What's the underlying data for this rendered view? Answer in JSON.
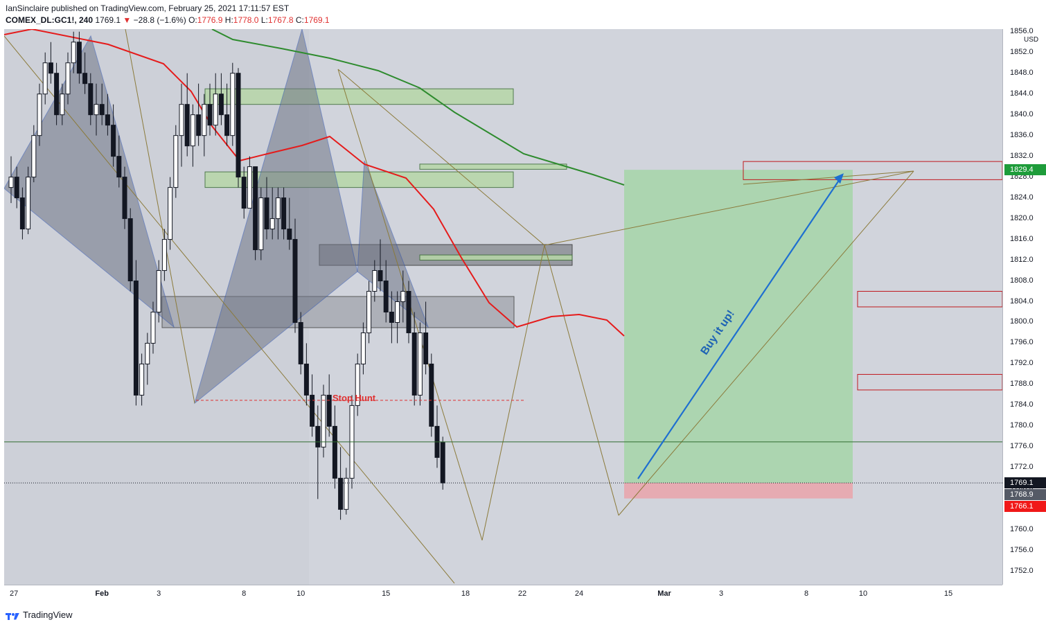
{
  "header": {
    "line1": "IanSinclaire published on TradingView.com, February 25, 2021 17:11:57 EST",
    "symbol": "COMEX_DL:GC1!, 240",
    "last": "1769.1",
    "change": "−28.8 (−1.6%)",
    "ohlc_open_label": "O:",
    "ohlc_open": "1776.9",
    "ohlc_high_label": "H:",
    "ohlc_high": "1778.0",
    "ohlc_low_label": "L:",
    "ohlc_low": "1767.8",
    "ohlc_close_label": "C:",
    "ohlc_close": "1769.1"
  },
  "axis": {
    "currency": "USD",
    "price_tags": [
      {
        "label": "1829.4",
        "color": "#1e9c3a"
      },
      {
        "label": "1769.1",
        "color": "#131722"
      },
      {
        "label": "1768.9",
        "color": "#555a66"
      },
      {
        "label": "1766.1",
        "color": "#f01818"
      }
    ]
  },
  "annotations": {
    "stop_hunt": "Stop Hunt",
    "buy_it_up": "Buy it up!"
  },
  "footer": {
    "brand": "TradingView"
  },
  "chart_data": {
    "type": "candlestick",
    "title": "COMEX_DL:GC1!, 240",
    "ylabel": "USD",
    "ylim": [
      1749.5,
      1856.5
    ],
    "yticks": [
      1752.0,
      1756.0,
      1760.0,
      1764.0,
      1768.0,
      1772.0,
      1776.0,
      1780.0,
      1784.0,
      1788.0,
      1792.0,
      1796.0,
      1800.0,
      1804.0,
      1808.0,
      1812.0,
      1816.0,
      1820.0,
      1824.0,
      1828.0,
      1832.0,
      1836.0,
      1840.0,
      1844.0,
      1848.0,
      1852.0,
      1856.0
    ],
    "xticks": [
      {
        "label": "27",
        "x": 0.5,
        "bold": false
      },
      {
        "label": "Feb",
        "x": 16,
        "bold": true
      },
      {
        "label": "3",
        "x": 26,
        "bold": false
      },
      {
        "label": "8",
        "x": 41,
        "bold": false
      },
      {
        "label": "10",
        "x": 51,
        "bold": false
      },
      {
        "label": "15",
        "x": 66,
        "bold": false
      },
      {
        "label": "18",
        "x": 80,
        "bold": false
      },
      {
        "label": "22",
        "x": 90,
        "bold": false
      },
      {
        "label": "24",
        "x": 100,
        "bold": false
      },
      {
        "label": "Mar",
        "x": 115,
        "bold": true
      },
      {
        "label": "3",
        "x": 125,
        "bold": false
      },
      {
        "label": "8",
        "x": 140,
        "bold": false
      },
      {
        "label": "10",
        "x": 150,
        "bold": false
      },
      {
        "label": "15",
        "x": 165,
        "bold": false
      }
    ],
    "candles": [
      [
        1826,
        1832,
        1823,
        1828
      ],
      [
        1828,
        1830,
        1822,
        1824
      ],
      [
        1824,
        1826,
        1816,
        1818
      ],
      [
        1818,
        1830,
        1817,
        1828
      ],
      [
        1828,
        1838,
        1827,
        1836
      ],
      [
        1836,
        1846,
        1834,
        1844
      ],
      [
        1844,
        1852,
        1842,
        1850
      ],
      [
        1850,
        1854,
        1846,
        1848
      ],
      [
        1848,
        1850,
        1838,
        1840
      ],
      [
        1840,
        1846,
        1838,
        1844
      ],
      [
        1844,
        1852,
        1842,
        1850
      ],
      [
        1850,
        1856,
        1848,
        1854
      ],
      [
        1854,
        1856,
        1846,
        1848
      ],
      [
        1848,
        1852,
        1844,
        1846
      ],
      [
        1846,
        1848,
        1838,
        1840
      ],
      [
        1840,
        1846,
        1836,
        1842
      ],
      [
        1842,
        1846,
        1838,
        1840
      ],
      [
        1840,
        1844,
        1836,
        1838
      ],
      [
        1838,
        1842,
        1830,
        1832
      ],
      [
        1832,
        1836,
        1826,
        1828
      ],
      [
        1828,
        1830,
        1818,
        1820
      ],
      [
        1820,
        1822,
        1806,
        1808
      ],
      [
        1808,
        1812,
        1784,
        1786
      ],
      [
        1786,
        1794,
        1784,
        1792
      ],
      [
        1792,
        1798,
        1788,
        1796
      ],
      [
        1796,
        1804,
        1794,
        1802
      ],
      [
        1802,
        1812,
        1800,
        1810
      ],
      [
        1810,
        1818,
        1808,
        1816
      ],
      [
        1816,
        1828,
        1814,
        1826
      ],
      [
        1826,
        1838,
        1824,
        1836
      ],
      [
        1836,
        1846,
        1830,
        1842
      ],
      [
        1842,
        1848,
        1832,
        1834
      ],
      [
        1834,
        1842,
        1830,
        1840
      ],
      [
        1840,
        1846,
        1834,
        1836
      ],
      [
        1836,
        1844,
        1832,
        1842
      ],
      [
        1842,
        1846,
        1836,
        1838
      ],
      [
        1838,
        1848,
        1836,
        1844
      ],
      [
        1844,
        1848,
        1838,
        1840
      ],
      [
        1840,
        1846,
        1834,
        1836
      ],
      [
        1836,
        1850,
        1834,
        1848
      ],
      [
        1848,
        1849,
        1826,
        1828
      ],
      [
        1828,
        1830,
        1820,
        1822
      ],
      [
        1822,
        1832,
        1822,
        1830
      ],
      [
        1830,
        1830,
        1812,
        1814
      ],
      [
        1814,
        1826,
        1812,
        1824
      ],
      [
        1824,
        1828,
        1816,
        1818
      ],
      [
        1818,
        1826,
        1816,
        1820
      ],
      [
        1820,
        1826,
        1816,
        1824
      ],
      [
        1824,
        1826,
        1816,
        1818
      ],
      [
        1818,
        1824,
        1814,
        1816
      ],
      [
        1816,
        1820,
        1798,
        1800
      ],
      [
        1800,
        1802,
        1790,
        1792
      ],
      [
        1792,
        1796,
        1784,
        1786
      ],
      [
        1786,
        1790,
        1778,
        1780
      ],
      [
        1780,
        1784,
        1766,
        1776
      ],
      [
        1776,
        1788,
        1774,
        1786
      ],
      [
        1786,
        1790,
        1778,
        1780
      ],
      [
        1780,
        1784,
        1768,
        1770
      ],
      [
        1770,
        1776,
        1762,
        1764
      ],
      [
        1764,
        1772,
        1763,
        1770
      ],
      [
        1770,
        1786,
        1768,
        1784
      ],
      [
        1784,
        1794,
        1782,
        1792
      ],
      [
        1792,
        1800,
        1790,
        1798
      ],
      [
        1798,
        1808,
        1796,
        1806
      ],
      [
        1806,
        1812,
        1804,
        1810
      ],
      [
        1810,
        1816,
        1806,
        1808
      ],
      [
        1808,
        1812,
        1800,
        1802
      ],
      [
        1802,
        1806,
        1796,
        1800
      ],
      [
        1800,
        1806,
        1796,
        1804
      ],
      [
        1804,
        1810,
        1800,
        1806
      ],
      [
        1806,
        1808,
        1796,
        1798
      ],
      [
        1798,
        1802,
        1784,
        1786
      ],
      [
        1786,
        1800,
        1784,
        1798
      ],
      [
        1798,
        1804,
        1790,
        1792
      ],
      [
        1792,
        1794,
        1778,
        1780
      ],
      [
        1780,
        1784,
        1772,
        1774
      ],
      [
        1776.9,
        1778,
        1767.8,
        1769.1
      ]
    ],
    "ma_red": "20-period moving average",
    "ma_green": "long-period moving average",
    "current_price": 1769.1,
    "position": {
      "entry": 1769.1,
      "target": 1829.4,
      "stop": 1766.1
    }
  }
}
